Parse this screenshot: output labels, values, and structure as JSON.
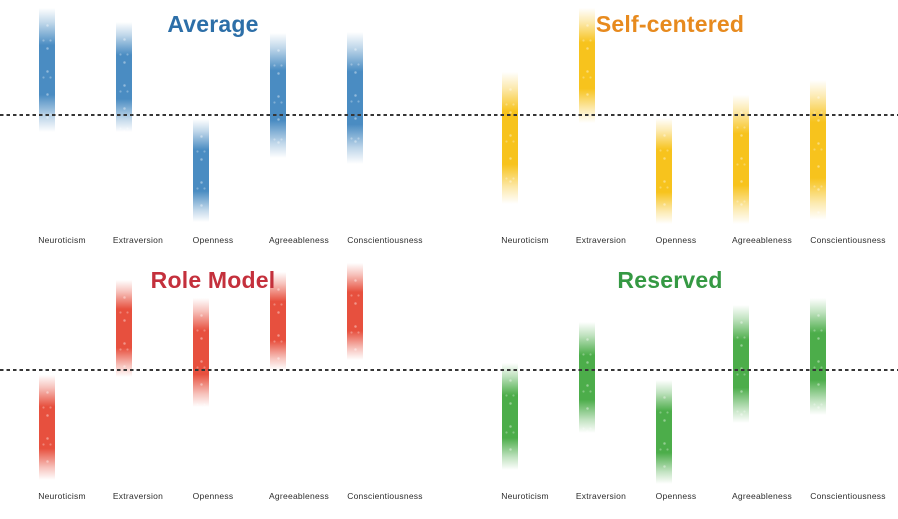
{
  "figure": {
    "background": "#ffffff"
  },
  "chart_data": {
    "type": "area",
    "variant": "vertical gradient-strip trait profiles, 2x2 small multiples",
    "title": "",
    "categories": [
      "Neuroticism",
      "Extraversion",
      "Openness",
      "Agreeableness",
      "Conscientiousness"
    ],
    "baseline": {
      "value": 0,
      "style": "dashed",
      "color": "#363636"
    },
    "units": "z-score relative to dashed baseline (estimated from pixels)",
    "grid": "off",
    "legend": "none",
    "panels": [
      {
        "title": "Average",
        "title_color": "#2d6fa8",
        "bar_color": "#4a8cc2",
        "row": 0,
        "col": 0,
        "ranges": [
          [
            -0.32,
            1.94
          ],
          [
            -0.32,
            1.68
          ],
          [
            -1.95,
            -0.08
          ],
          [
            -0.79,
            1.48
          ],
          [
            -0.9,
            1.5
          ]
        ]
      },
      {
        "title": "Self-centered",
        "title_color": "#e78a1e",
        "bar_color": "#f7c31d",
        "row": 0,
        "col": 1,
        "ranges": [
          [
            -1.63,
            0.77
          ],
          [
            -0.15,
            1.94
          ],
          [
            -1.99,
            -0.06
          ],
          [
            -1.99,
            0.35
          ],
          [
            -1.92,
            0.63
          ]
        ]
      },
      {
        "title": "Role Model",
        "title_color": "#c4303c",
        "bar_color": "#e7503e",
        "row": 1,
        "col": 0,
        "ranges": [
          [
            -2.01,
            -0.1
          ],
          [
            -0.14,
            1.63
          ],
          [
            -0.68,
            1.3
          ],
          [
            -0.01,
            1.77
          ],
          [
            0.17,
            1.94
          ]
        ]
      },
      {
        "title": "Reserved",
        "title_color": "#359943",
        "bar_color": "#4cad4a",
        "row": 1,
        "col": 1,
        "ranges": [
          [
            -1.83,
            0.12
          ],
          [
            -1.15,
            0.86
          ],
          [
            -2.08,
            -0.19
          ],
          [
            -0.97,
            1.17
          ],
          [
            -0.83,
            1.3
          ]
        ]
      }
    ]
  }
}
